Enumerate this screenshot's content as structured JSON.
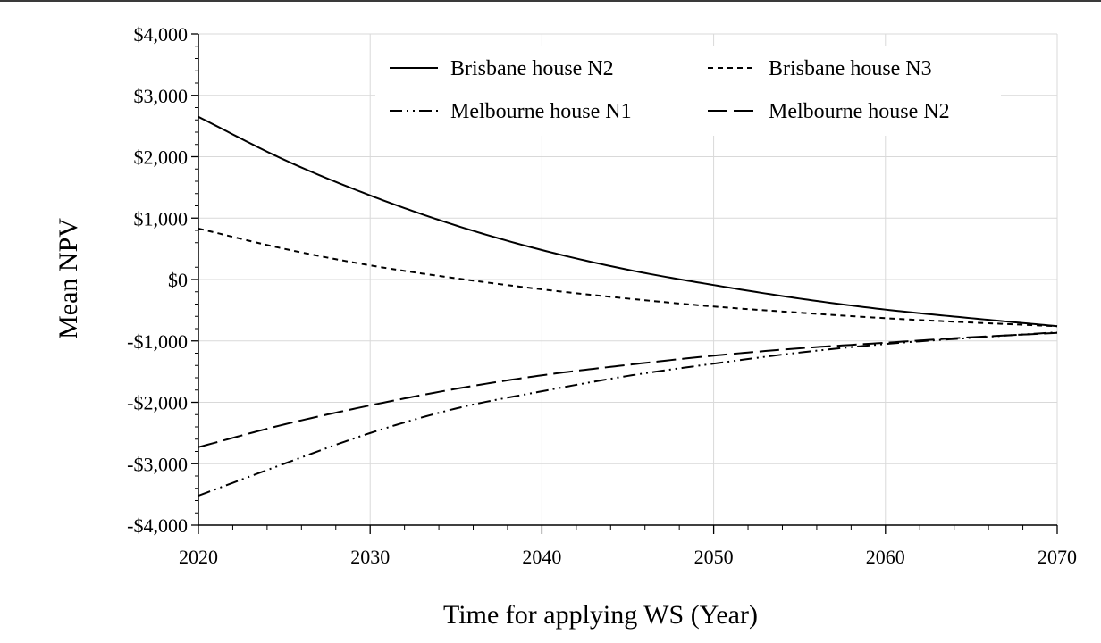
{
  "chart_data": {
    "type": "line",
    "title": "",
    "xlabel": "Time for applying WS (Year)",
    "ylabel": "Mean NPV",
    "xlim": [
      2020,
      2070
    ],
    "ylim": [
      -4000,
      4000
    ],
    "x_ticks": [
      2020,
      2030,
      2040,
      2050,
      2060,
      2070
    ],
    "y_ticks": [
      -4000,
      -3000,
      -2000,
      -1000,
      0,
      1000,
      2000,
      3000,
      4000
    ],
    "x_tick_labels": [
      "2020",
      "2030",
      "2040",
      "2050",
      "2060",
      "2070"
    ],
    "y_tick_labels": [
      "-$4,000",
      "-$3,000",
      "-$2,000",
      "-$1,000",
      "$0",
      "$1,000",
      "$2,000",
      "$3,000",
      "$4,000"
    ],
    "grid": true,
    "legend_position": "top",
    "x": [
      2020,
      2025,
      2030,
      2035,
      2040,
      2045,
      2050,
      2055,
      2060,
      2065,
      2070
    ],
    "series": [
      {
        "name": "Brisbane house N2",
        "style": "solid",
        "values": [
          2650,
          1950,
          1370,
          880,
          480,
          160,
          -90,
          -310,
          -490,
          -630,
          -760
        ]
      },
      {
        "name": "Brisbane house N3",
        "style": "dotted",
        "values": [
          830,
          500,
          230,
          20,
          -160,
          -310,
          -440,
          -540,
          -630,
          -700,
          -760
        ]
      },
      {
        "name": "Melbourne house N1",
        "style": "dash-dot-dot",
        "values": [
          -3520,
          -3000,
          -2500,
          -2100,
          -1820,
          -1570,
          -1370,
          -1190,
          -1050,
          -950,
          -860
        ]
      },
      {
        "name": "Melbourne house N2",
        "style": "long-dash",
        "values": [
          -2730,
          -2360,
          -2050,
          -1780,
          -1560,
          -1390,
          -1240,
          -1120,
          -1030,
          -940,
          -870
        ]
      }
    ]
  }
}
